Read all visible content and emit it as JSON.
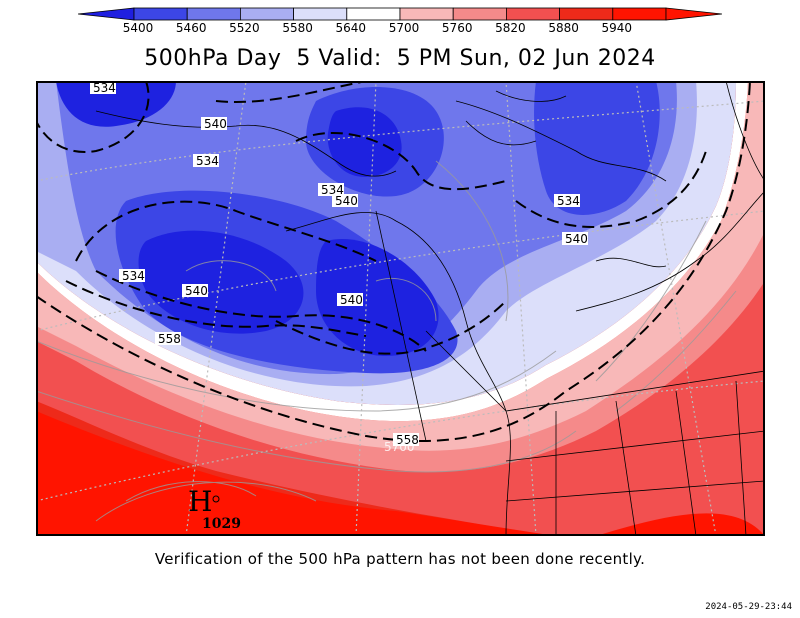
{
  "colorbar": {
    "ticks": [
      "5400",
      "5460",
      "5520",
      "5580",
      "5640",
      "5700",
      "5760",
      "5820",
      "5880",
      "5940"
    ],
    "colors": [
      "#1f1fe0",
      "#3c46e6",
      "#6f77ec",
      "#a9aef2",
      "#dcdffa",
      "#ffffff",
      "#f8b8b8",
      "#f58a8a",
      "#f25050",
      "#ee2a1a",
      "#ff1400"
    ]
  },
  "title": "500hPa Day  5 Valid:  5 PM Sun, 02 Jun 2024",
  "map": {
    "height_labels": [
      "534",
      "540",
      "534",
      "534",
      "540",
      "534",
      "540",
      "534",
      "540",
      "540",
      "558",
      "558",
      "5700"
    ],
    "high_pressure": {
      "symbol": "H",
      "value": "1029"
    },
    "shading": {
      "ocean_warm": "#f21a0e",
      "warm_mid": "#ee3a2a",
      "cold_core": "#1e22e0"
    }
  },
  "caption": "Verification of the 500 hPa pattern has not been done recently.",
  "timestamp": "2024-05-29-23:44"
}
